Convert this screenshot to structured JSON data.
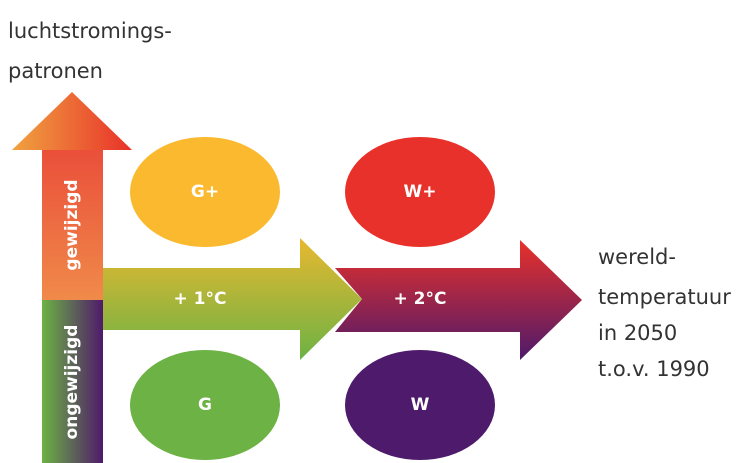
{
  "header": {
    "lines": [
      "luchtstromings-",
      "patronen"
    ]
  },
  "vertical_axis": {
    "upper": "gewijzigd",
    "lower": "ongewijzigd"
  },
  "arrows": [
    {
      "label": "+ 1°C"
    },
    {
      "label": "+ 2°C"
    }
  ],
  "horizontal_axis": {
    "lines": [
      "wereld-",
      "temperatuur",
      "in 2050",
      "t.o.v. 1990"
    ]
  },
  "nodes": [
    {
      "label": "G+"
    },
    {
      "label": "W+"
    },
    {
      "label": "G"
    },
    {
      "label": "W"
    }
  ]
}
